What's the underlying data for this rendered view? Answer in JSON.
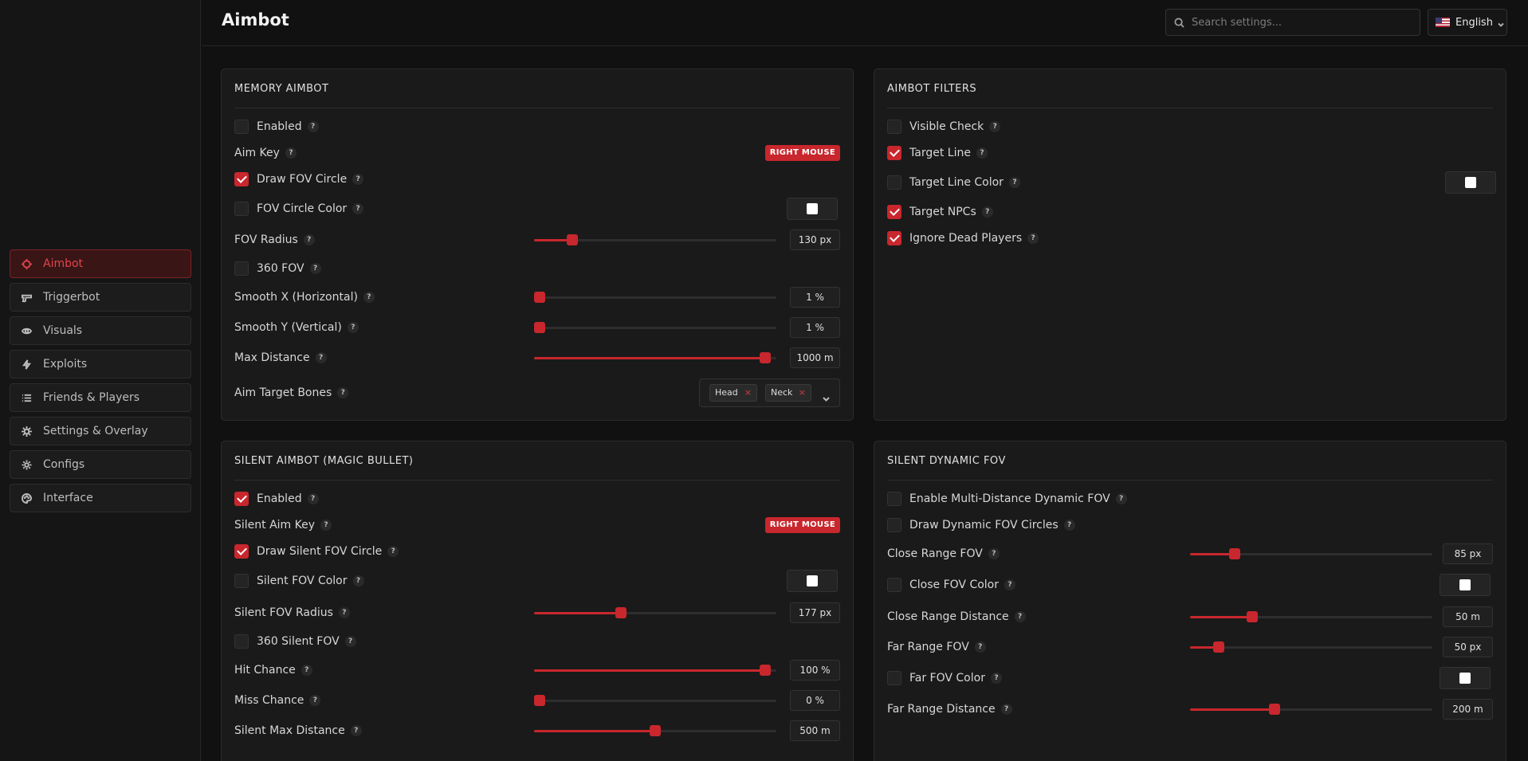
{
  "nav": [
    {
      "label": "Aimbot",
      "icon": "crosshair-icon",
      "active": true
    },
    {
      "label": "Triggerbot",
      "icon": "gun-icon"
    },
    {
      "label": "Visuals",
      "icon": "eye-icon"
    },
    {
      "label": "Exploits",
      "icon": "lightning-icon"
    },
    {
      "label": "Friends & Players",
      "icon": "list-icon"
    },
    {
      "label": "Settings & Overlay",
      "icon": "bug-icon"
    },
    {
      "label": "Configs",
      "icon": "gear-icon"
    },
    {
      "label": "Interface",
      "icon": "palette-icon"
    }
  ],
  "header": {
    "title": "Aimbot",
    "search_placeholder": "Search settings...",
    "language": "English"
  },
  "colors": {
    "accent": "#c8272d",
    "background": "#111111",
    "panel": "#1a1a1a"
  },
  "memory": {
    "title": "MEMORY AIMBOT",
    "enabled": {
      "label": "Enabled",
      "checked": false
    },
    "aim_key": {
      "label": "Aim Key",
      "value": "RIGHT MOUSE"
    },
    "draw_fov": {
      "label": "Draw FOV Circle",
      "checked": true
    },
    "fov_color": {
      "label": "FOV Circle Color",
      "checked": false
    },
    "fov_radius": {
      "label": "FOV Radius",
      "value": "130 px",
      "fraction": 0.14
    },
    "fov360": {
      "label": "360 FOV",
      "checked": false
    },
    "smooth_x": {
      "label": "Smooth X (Horizontal)",
      "value": "1 %",
      "fraction": 0.0
    },
    "smooth_y": {
      "label": "Smooth Y (Vertical)",
      "value": "1 %",
      "fraction": 0.0
    },
    "max_distance": {
      "label": "Max Distance",
      "value": "1000 m",
      "fraction": 0.975
    },
    "bones": {
      "label": "Aim Target Bones",
      "tags": [
        "Head",
        "Neck"
      ],
      "remove": "×"
    }
  },
  "filters": {
    "title": "AIMBOT FILTERS",
    "visible": {
      "label": "Visible Check",
      "checked": false
    },
    "target_line": {
      "label": "Target Line",
      "checked": true
    },
    "line_color": {
      "label": "Target Line Color",
      "checked": false
    },
    "npcs": {
      "label": "Target NPCs",
      "checked": true
    },
    "dead": {
      "label": "Ignore Dead Players",
      "checked": true
    }
  },
  "silent": {
    "title": "SILENT AIMBOT (MAGIC BULLET)",
    "enabled": {
      "label": "Enabled",
      "checked": true
    },
    "aim_key": {
      "label": "Silent Aim Key",
      "value": "RIGHT MOUSE"
    },
    "draw_fov": {
      "label": "Draw Silent FOV Circle",
      "checked": true
    },
    "fov_color": {
      "label": "Silent FOV Color",
      "checked": false
    },
    "fov_radius": {
      "label": "Silent FOV Radius",
      "value": "177 px",
      "fraction": 0.35
    },
    "fov360": {
      "label": "360 Silent FOV",
      "checked": false
    },
    "hit": {
      "label": "Hit Chance",
      "value": "100 %",
      "fraction": 0.975
    },
    "miss": {
      "label": "Miss Chance",
      "value": "0 %",
      "fraction": 0.0
    },
    "max_distance": {
      "label": "Silent Max Distance",
      "value": "500 m",
      "fraction": 0.5
    }
  },
  "dynamic": {
    "title": "SILENT DYNAMIC FOV",
    "enable": {
      "label": "Enable Multi-Distance Dynamic FOV",
      "checked": false
    },
    "draw": {
      "label": "Draw Dynamic FOV Circles",
      "checked": false
    },
    "close_fov": {
      "label": "Close Range FOV",
      "value": "85 px",
      "fraction": 0.17
    },
    "close_color": {
      "label": "Close FOV Color",
      "checked": false
    },
    "close_dist": {
      "label": "Close Range Distance",
      "value": "50 m",
      "fraction": 0.245
    },
    "far_fov": {
      "label": "Far Range FOV",
      "value": "50 px",
      "fraction": 0.1
    },
    "far_color": {
      "label": "Far FOV Color",
      "checked": false
    },
    "far_dist": {
      "label": "Far Range Distance",
      "value": "200 m",
      "fraction": 0.34
    }
  },
  "help_glyph": "?"
}
